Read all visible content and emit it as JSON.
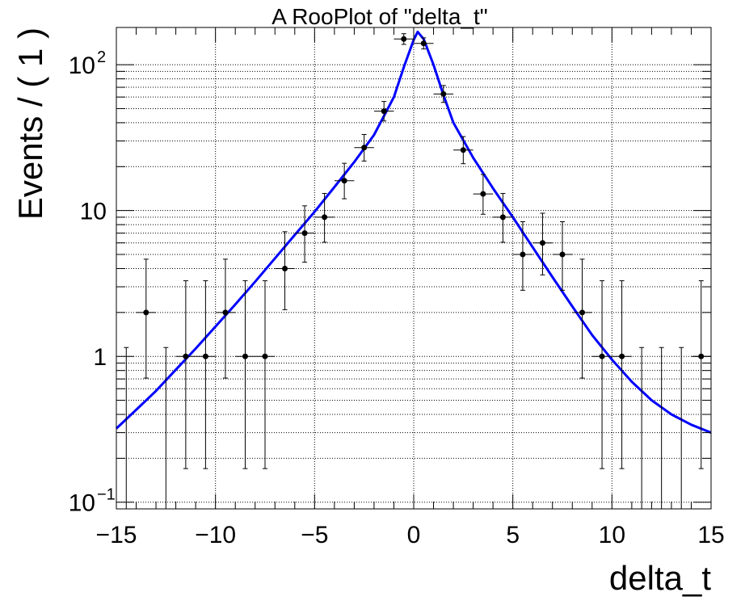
{
  "chart_data": {
    "type": "scatter",
    "title": "A RooPlot of \"delta_t\"",
    "xlabel": "delta_t",
    "ylabel": "Events / ( 1 )",
    "xlim": [
      -15,
      15
    ],
    "ylim": [
      0.09,
      180
    ],
    "yscale": "log",
    "grid": true,
    "x_ticks": [
      -15,
      -10,
      -5,
      0,
      5,
      10,
      15
    ],
    "x_tick_labels": [
      "−15",
      "−10",
      "−5",
      "0",
      "5",
      "10",
      "15"
    ],
    "y_ticks": [
      {
        "value": 0.1,
        "base": "10",
        "exp": "−1"
      },
      {
        "value": 1,
        "base": "1",
        "exp": ""
      },
      {
        "value": 10,
        "base": "10",
        "exp": ""
      },
      {
        "value": 100,
        "base": "10",
        "exp": "2"
      }
    ],
    "series": [
      {
        "kind": "points",
        "color": "#000000",
        "x": [
          -14.5,
          -13.5,
          -12.5,
          -11.5,
          -10.5,
          -9.5,
          -8.5,
          -7.5,
          -6.5,
          -5.5,
          -4.5,
          -3.5,
          -2.5,
          -1.5,
          -0.5,
          0.5,
          1.5,
          2.5,
          3.5,
          4.5,
          5.5,
          6.5,
          7.5,
          8.5,
          9.5,
          10.5,
          11.5,
          12.5,
          13.5,
          14.5
        ],
        "y": [
          0,
          2,
          0,
          1,
          1,
          2,
          1,
          1,
          4,
          7,
          9,
          16,
          27,
          48,
          150,
          140,
          63,
          26,
          13,
          9,
          5,
          6,
          5,
          2,
          1,
          1,
          0,
          0,
          0,
          1
        ],
        "err_low": [
          0,
          1.29,
          0,
          0.83,
          0.83,
          1.29,
          0.83,
          0.83,
          1.91,
          2.58,
          2.94,
          3.96,
          5.16,
          6.9,
          12.2,
          11.8,
          7.9,
          5.06,
          3.57,
          2.94,
          2.16,
          2.38,
          2.16,
          1.29,
          0.83,
          0.83,
          0,
          0,
          0,
          0.83
        ],
        "err_high": [
          1.15,
          2.64,
          1.15,
          2.3,
          2.3,
          2.64,
          2.3,
          2.3,
          3.16,
          3.77,
          4.1,
          5.08,
          6.23,
          7.98,
          13.2,
          12.8,
          8.98,
          6.14,
          4.67,
          4.1,
          3.38,
          3.58,
          3.38,
          2.64,
          2.3,
          2.3,
          1.15,
          1.15,
          1.15,
          2.3
        ],
        "x_halfwidth": 0.5
      },
      {
        "kind": "curve",
        "color": "#0000ff",
        "x": [
          -15,
          -14,
          -13,
          -12,
          -11,
          -10,
          -9,
          -8,
          -7,
          -6,
          -5,
          -4,
          -3,
          -2,
          -1,
          -0.5,
          0,
          0.2,
          0.5,
          1,
          1.5,
          2,
          3,
          4,
          5,
          6,
          7,
          8,
          9,
          10,
          11,
          12,
          13,
          14,
          15
        ],
        "y": [
          0.32,
          0.43,
          0.58,
          0.81,
          1.13,
          1.6,
          2.27,
          3.25,
          4.7,
          6.8,
          9.8,
          14.5,
          21.5,
          33,
          60,
          96,
          148,
          168,
          150,
          100,
          62,
          40,
          23,
          14.2,
          9.0,
          5.6,
          3.5,
          2.2,
          1.4,
          0.95,
          0.67,
          0.5,
          0.4,
          0.34,
          0.3
        ]
      }
    ]
  }
}
